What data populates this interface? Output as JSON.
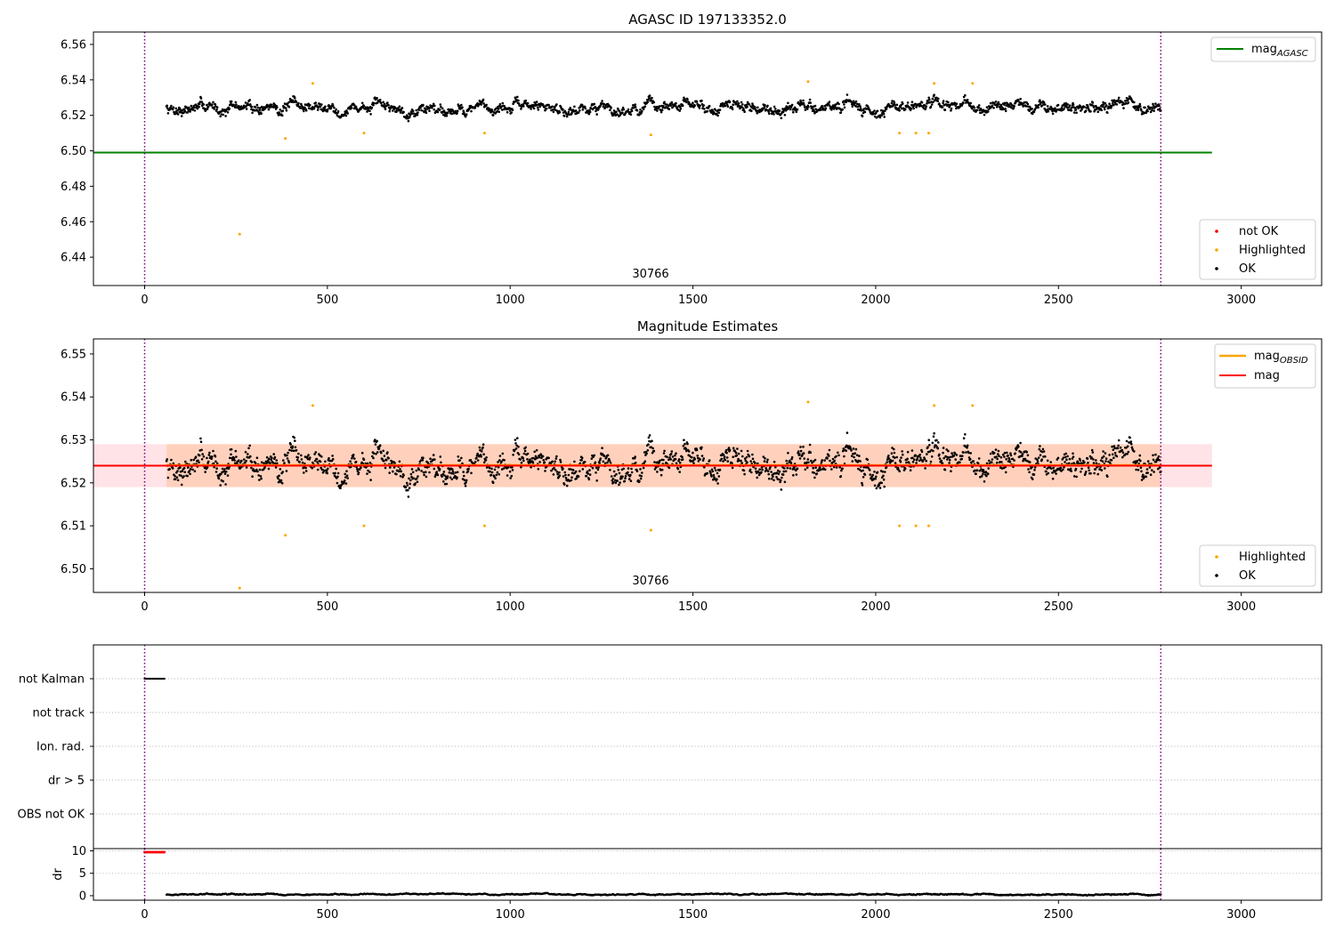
{
  "chart_data": [
    {
      "type": "scatter",
      "title": "AGASC ID 197133352.0",
      "xlim": [
        -140,
        3220
      ],
      "ylim": [
        6.424,
        6.567
      ],
      "x_ticks": [
        "0",
        "500",
        "1000",
        "1500",
        "2000",
        "2500",
        "3000"
      ],
      "y_ticks": [
        "6.44",
        "6.46",
        "6.48",
        "6.50",
        "6.52",
        "6.54",
        "6.56"
      ],
      "obsid_label": "30766",
      "obsid_bounds": [
        0,
        2780
      ],
      "hlines": [
        {
          "name": "mag",
          "subscript": "AGASC",
          "y": 6.499,
          "x_range": [
            -140,
            2920
          ],
          "color": "#008000"
        }
      ],
      "series": [
        {
          "name": "not OK",
          "color": "#ff0000",
          "points": []
        },
        {
          "name": "Highlighted",
          "color": "#ffa500",
          "points": [
            [
              260,
              6.453
            ],
            [
              385,
              6.507
            ],
            [
              460,
              6.538
            ],
            [
              600,
              6.51
            ],
            [
              930,
              6.51
            ],
            [
              1385,
              6.509
            ],
            [
              1815,
              6.539
            ],
            [
              2065,
              6.51
            ],
            [
              2110,
              6.51
            ],
            [
              2145,
              6.51
            ],
            [
              2160,
              6.538
            ],
            [
              2265,
              6.538
            ]
          ]
        },
        {
          "name": "OK",
          "color": "#000000",
          "generated": {
            "x_start": 60,
            "x_end": 2780,
            "count": 1900,
            "baseline": 6.5245,
            "noise": 0.0035
          }
        }
      ],
      "legends": [
        {
          "placement": "top-right",
          "entries": [
            "mag_AGASC"
          ]
        },
        {
          "placement": "bottom-right",
          "entries": [
            "not OK",
            "Highlighted",
            "OK"
          ]
        }
      ]
    },
    {
      "type": "scatter",
      "title": "Magnitude Estimates",
      "xlim": [
        -140,
        3220
      ],
      "ylim": [
        6.4945,
        6.5535
      ],
      "x_ticks": [
        "0",
        "500",
        "1000",
        "1500",
        "2000",
        "2500",
        "3000"
      ],
      "y_ticks": [
        "6.50",
        "6.51",
        "6.52",
        "6.53",
        "6.54",
        "6.55"
      ],
      "obsid_label": "30766",
      "obsid_bounds": [
        0,
        2780
      ],
      "hlines": [
        {
          "name": "mag",
          "subscript": "OBSID",
          "y": 6.524,
          "x_range": [
            60,
            2780
          ],
          "color": "#ffa500"
        },
        {
          "name": "mag",
          "subscript": "",
          "y": 6.524,
          "x_range": [
            -140,
            2920
          ],
          "color": "#ff0000"
        }
      ],
      "bands": [
        {
          "y_range": [
            6.519,
            6.529
          ],
          "x_range": [
            -140,
            2920
          ],
          "color": "#ff9aa8"
        },
        {
          "y_range": [
            6.519,
            6.529
          ],
          "x_range": [
            60,
            2780
          ],
          "color": "#ffb070"
        }
      ],
      "series": [
        {
          "name": "Highlighted",
          "color": "#ffa500",
          "points": [
            [
              260,
              6.4955
            ],
            [
              385,
              6.5078
            ],
            [
              460,
              6.538
            ],
            [
              600,
              6.51
            ],
            [
              930,
              6.51
            ],
            [
              1385,
              6.509
            ],
            [
              1815,
              6.5388
            ],
            [
              2065,
              6.51
            ],
            [
              2110,
              6.51
            ],
            [
              2145,
              6.51
            ],
            [
              2160,
              6.538
            ],
            [
              2265,
              6.538
            ]
          ]
        },
        {
          "name": "OK",
          "color": "#000000",
          "generated": {
            "x_start": 60,
            "x_end": 2780,
            "count": 1900,
            "baseline": 6.5245,
            "noise": 0.0035
          }
        }
      ],
      "legends": [
        {
          "placement": "top-right",
          "entries": [
            "mag_OBSID",
            "mag"
          ]
        },
        {
          "placement": "bottom-right",
          "entries": [
            "Highlighted",
            "OK"
          ]
        }
      ]
    },
    {
      "type": "scatter",
      "title": "",
      "xlim": [
        -140,
        3220
      ],
      "categories": [
        "not Kalman",
        "not track",
        "Ion. rad.",
        "dr > 5",
        "OBS not OK"
      ],
      "flags": [
        {
          "category": "not Kalman",
          "x_range": [
            0,
            55
          ],
          "color": "#000000"
        }
      ],
      "obsid_bounds": [
        0,
        2780
      ]
    },
    {
      "type": "scatter",
      "title": "",
      "ylabel": "dr",
      "xlim": [
        -140,
        3220
      ],
      "ylim": [
        -1,
        10.5
      ],
      "x_ticks": [
        "0",
        "500",
        "1000",
        "1500",
        "2000",
        "2500",
        "3000"
      ],
      "y_ticks": [
        "0",
        "5",
        "10"
      ],
      "obsid_bounds": [
        0,
        2780
      ],
      "series": [
        {
          "name": "dr",
          "color": "#000000",
          "generated": {
            "x_start": 60,
            "x_end": 2780,
            "count": 1900,
            "baseline": 0.3,
            "noise": 0.15
          }
        },
        {
          "name": "dr clipped",
          "color": "#ff0000",
          "x_range": [
            0,
            55
          ],
          "y": 9.7
        }
      ]
    }
  ]
}
